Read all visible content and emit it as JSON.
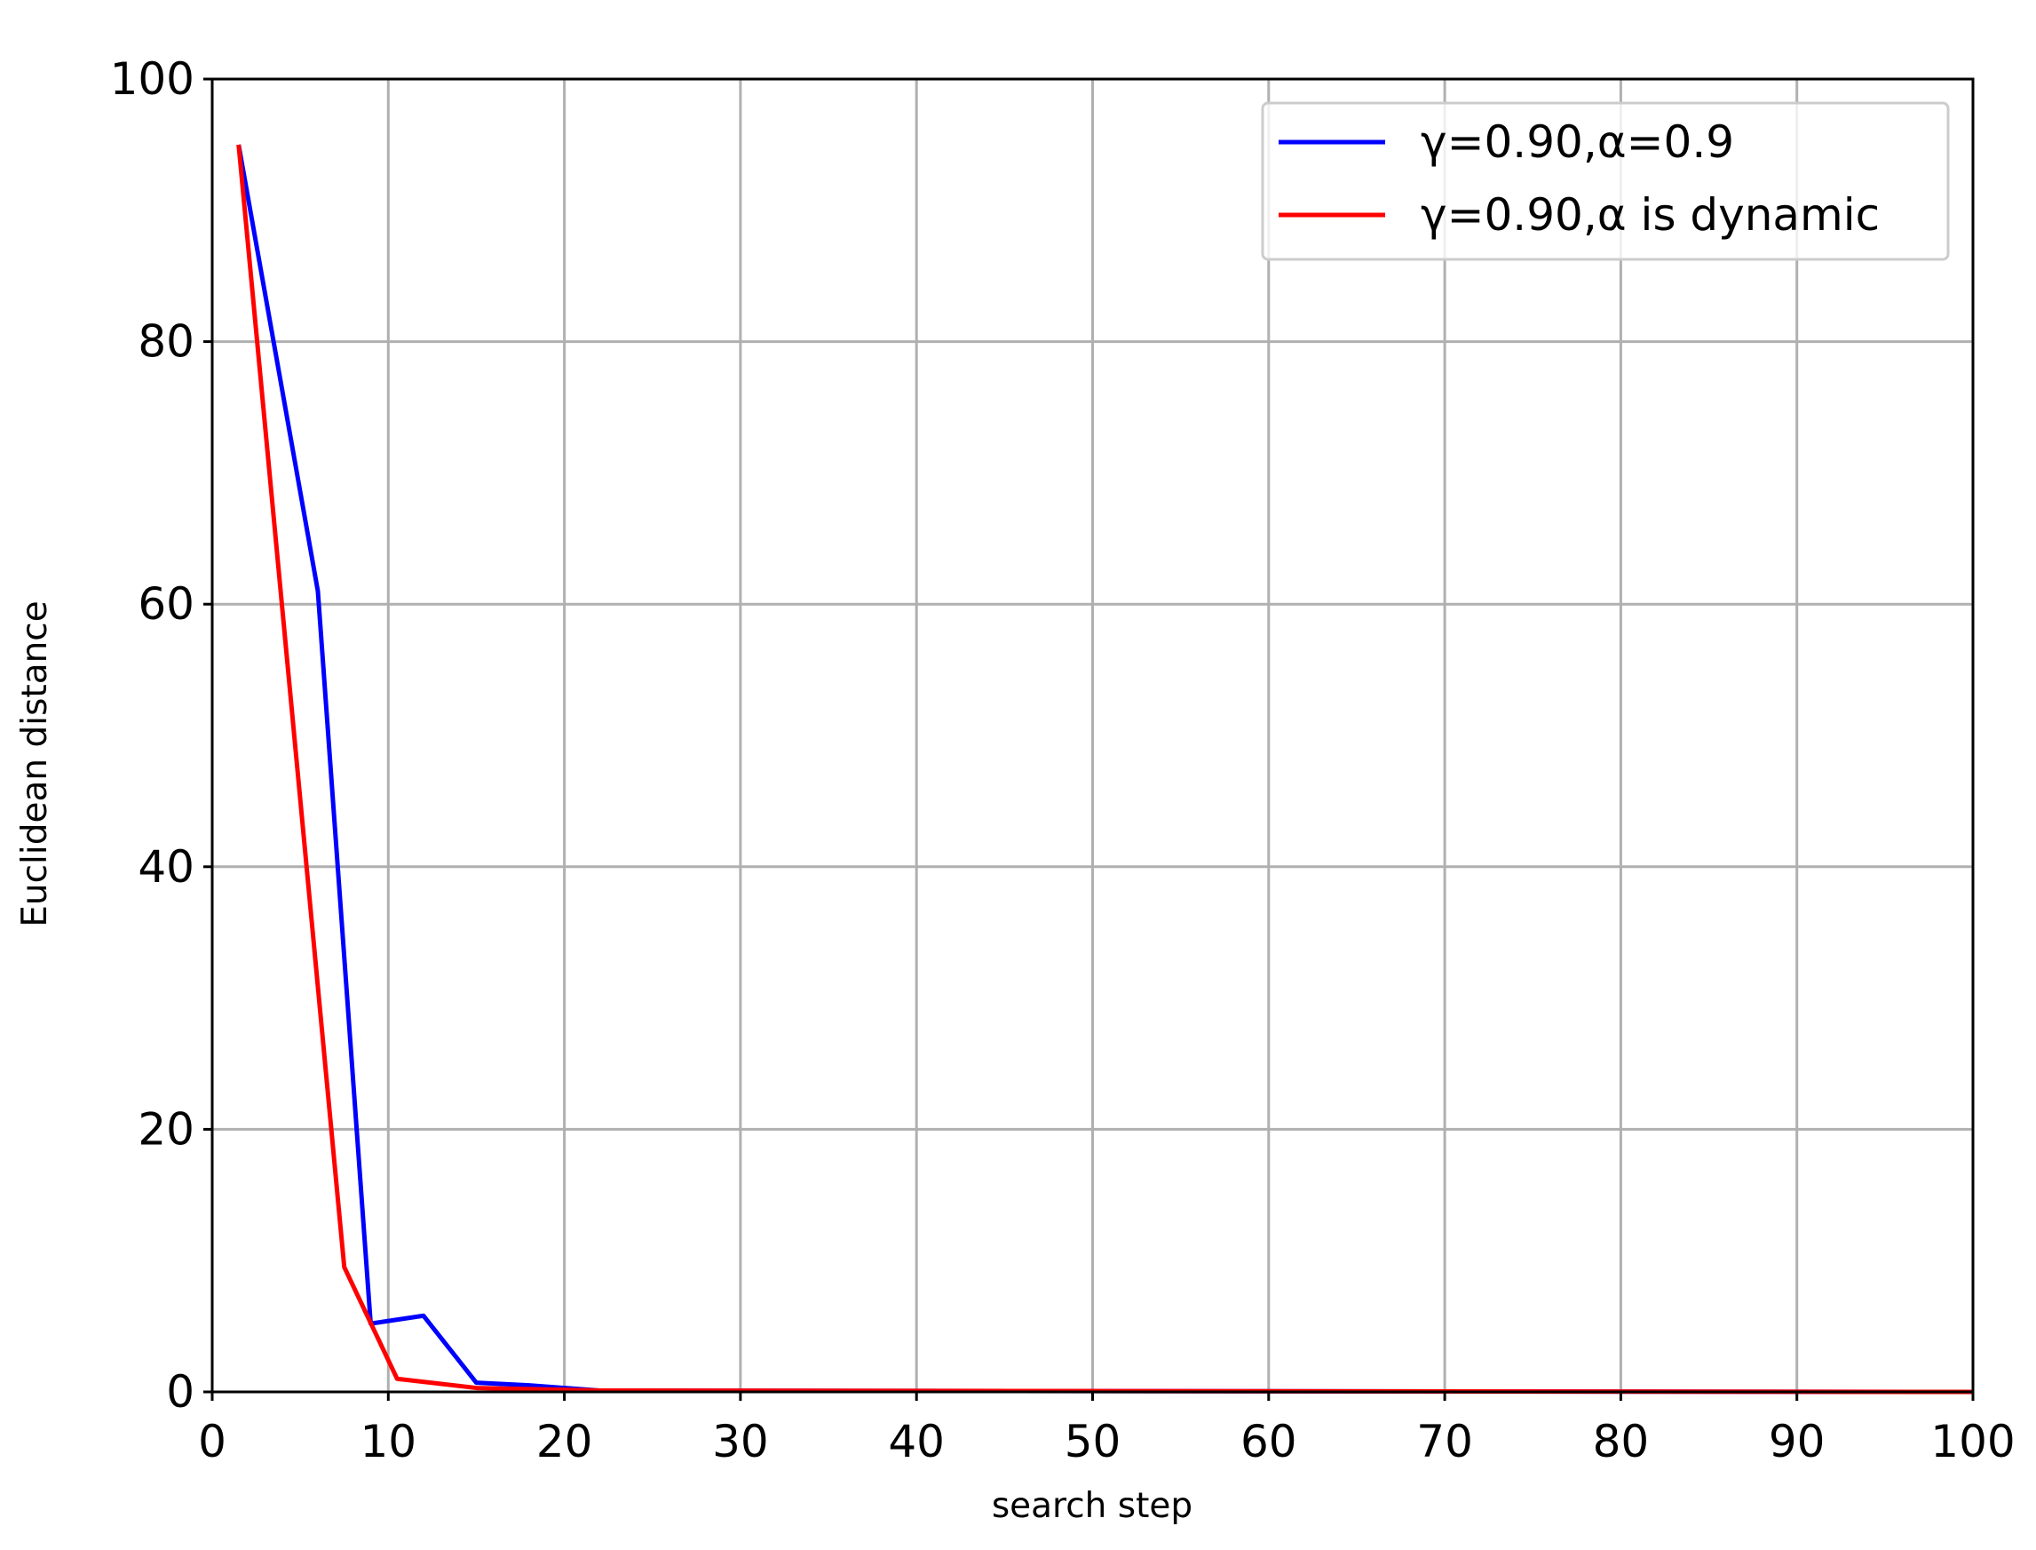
{
  "chart_data": {
    "type": "line",
    "xlabel": "search step",
    "ylabel": "Euclidean distance",
    "series": [
      {
        "name": "γ=0.90,α=0.9",
        "color": "#0000ff",
        "x": [
          1.5,
          6,
          9,
          12,
          15,
          18,
          22,
          100
        ],
        "values": [
          95,
          61,
          5.2,
          5.8,
          0.7,
          0.5,
          0.1,
          0
        ]
      },
      {
        "name": "γ=0.90,α is dynamic",
        "color": "#ff0000",
        "x": [
          1.5,
          7.5,
          10.5,
          15,
          22,
          100
        ],
        "values": [
          95,
          9.5,
          1,
          0.3,
          0.1,
          0
        ]
      }
    ],
    "xlim": [
      0,
      100
    ],
    "xticks": [
      0,
      10,
      20,
      30,
      40,
      50,
      60,
      70,
      80,
      90,
      100
    ],
    "ylim": [
      0,
      100
    ],
    "yticks": [
      0,
      20,
      40,
      60,
      80,
      100
    ],
    "grid": true,
    "legend": "upper-right"
  }
}
